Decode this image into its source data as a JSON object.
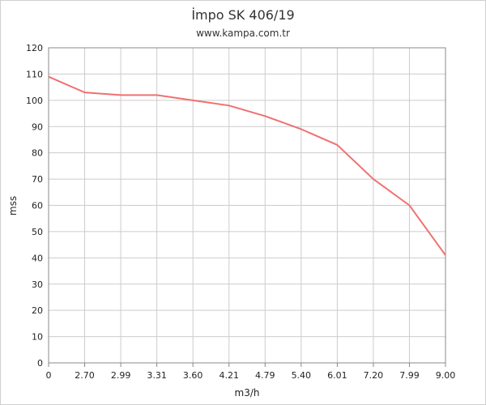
{
  "chart_data": {
    "type": "line",
    "title": "İmpo SK 406/19",
    "subtitle": "www.kampa.com.tr",
    "xlabel": "m3/h",
    "ylabel": "mss",
    "categories": [
      "0",
      "2.70",
      "2.99",
      "3.31",
      "3.60",
      "4.21",
      "4.79",
      "5.40",
      "6.01",
      "7.20",
      "7.99",
      "9.00"
    ],
    "series": [
      {
        "values": [
          109,
          103,
          102,
          102,
          100,
          98,
          94,
          89,
          83,
          70,
          60,
          41
        ]
      }
    ],
    "ylim": [
      0,
      120
    ],
    "yticks": [
      0,
      10,
      20,
      30,
      40,
      50,
      60,
      70,
      80,
      90,
      100,
      110,
      120
    ],
    "grid": true,
    "line_color": "#f07070",
    "grid_color": "#cccccc"
  }
}
